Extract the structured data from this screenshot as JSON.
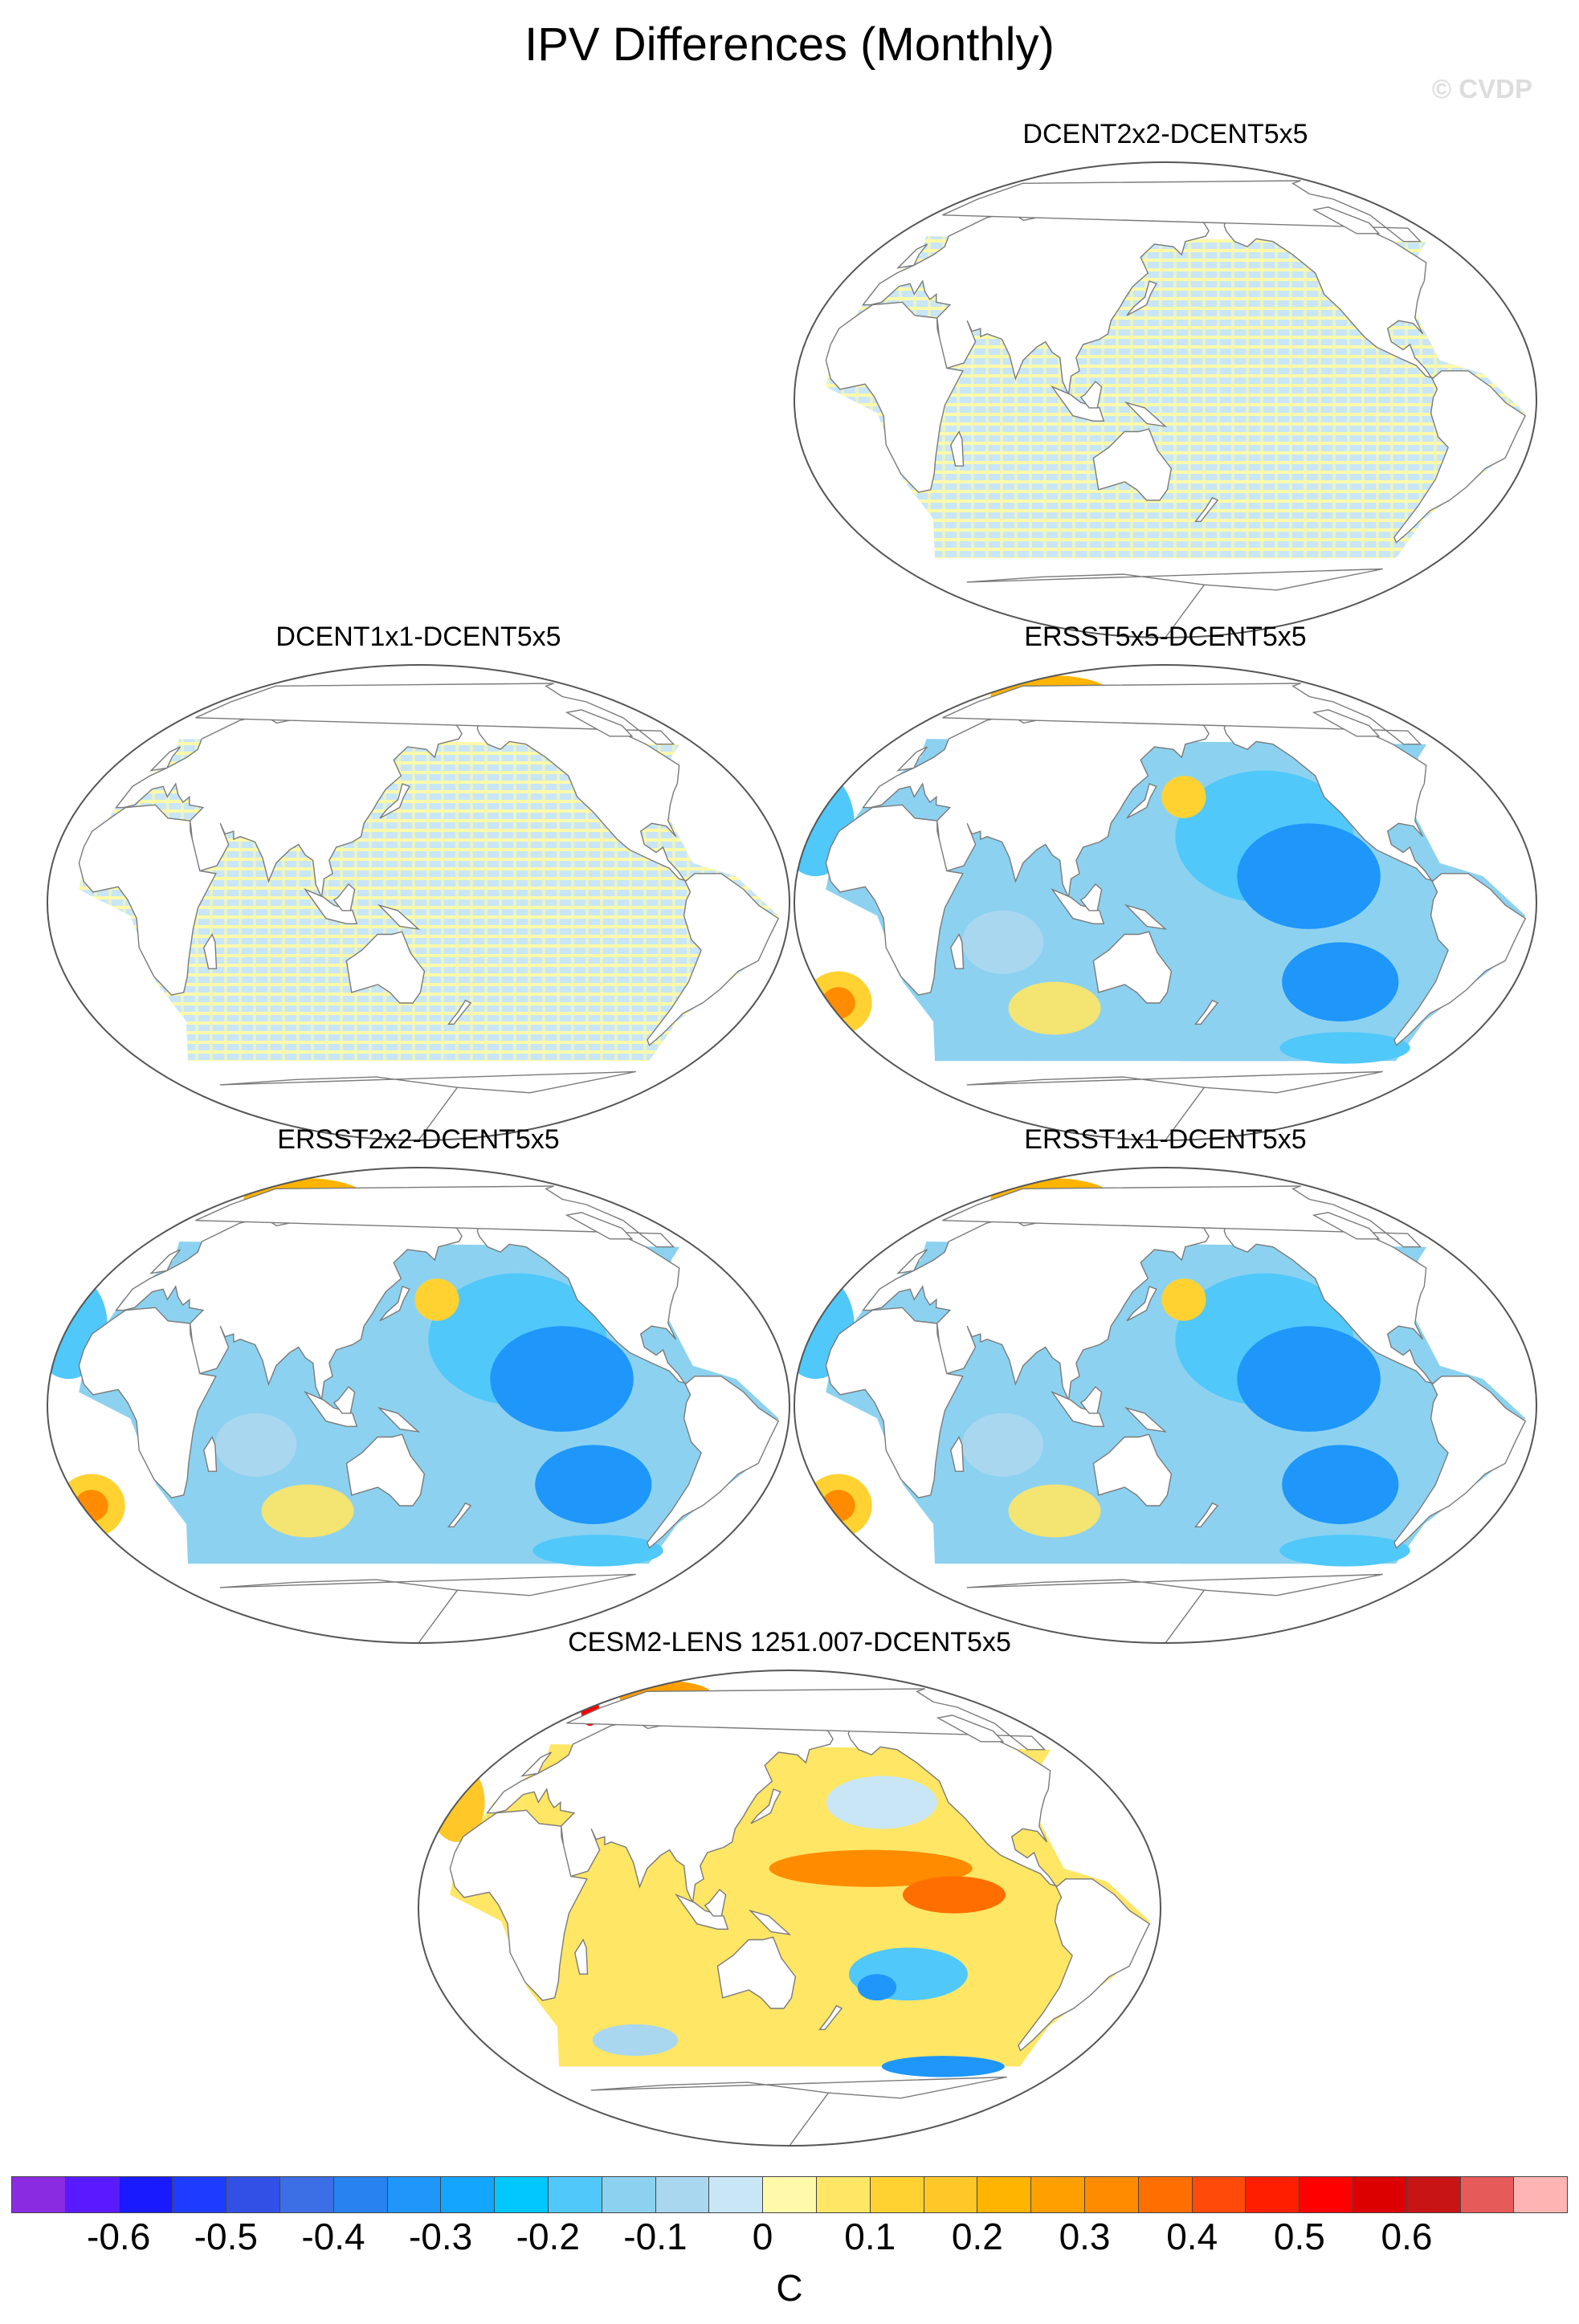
{
  "title": "IPV Differences (Monthly)",
  "watermark": "© CVDP",
  "panels": [
    {
      "title": "DCENT2x2-DCENT5x5",
      "pattern": "stripes"
    },
    {
      "title": "DCENT1x1-DCENT5x5",
      "pattern": "stripes"
    },
    {
      "title": "ERSST5x5-DCENT5x5",
      "pattern": "ersst"
    },
    {
      "title": "ERSST2x2-DCENT5x5",
      "pattern": "ersst"
    },
    {
      "title": "ERSST1x1-DCENT5x5",
      "pattern": "ersst"
    },
    {
      "title": "CESM2-LENS 1251.007-DCENT5x5",
      "pattern": "cesm"
    }
  ],
  "colorbar": {
    "colors": [
      "#8a2be2",
      "#5a1aff",
      "#1a1aff",
      "#1e3cff",
      "#3250e6",
      "#3c6ee6",
      "#2882f0",
      "#1e96fa",
      "#14a5ff",
      "#00c8ff",
      "#50c8fa",
      "#8cd2f0",
      "#aad7f0",
      "#c8e6f5",
      "#fffaaa",
      "#ffe664",
      "#ffd232",
      "#ffc828",
      "#ffb400",
      "#ffa000",
      "#ff8c00",
      "#ff6e00",
      "#ff4a0a",
      "#ff1e00",
      "#ff0000",
      "#dc0000",
      "#c81414",
      "#e65a5a",
      "#ffb4b4"
    ],
    "tick_labels": [
      "-0.6",
      "-0.5",
      "-0.4",
      "-0.3",
      "-0.2",
      "-0.1",
      "0",
      "0.1",
      "0.2",
      "0.3",
      "0.4",
      "0.5",
      "0.6"
    ],
    "units": "C"
  }
}
